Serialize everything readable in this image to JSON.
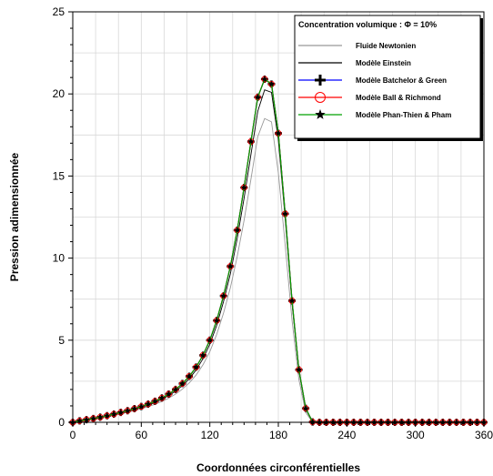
{
  "chart_data": {
    "type": "line",
    "title": "",
    "xlabel": "Coordonnées circonférentielles",
    "ylabel": "Pression adimensionnée",
    "xlim": [
      0,
      360
    ],
    "ylim": [
      0,
      25
    ],
    "xticks": [
      0,
      60,
      120,
      180,
      240,
      300,
      360
    ],
    "yticks": [
      0,
      5,
      10,
      15,
      20,
      25
    ],
    "grid": true,
    "legend": {
      "title": "Concentration volumique : Φ = 10%",
      "placement": "top-right"
    },
    "series": [
      {
        "name": "Fluide Newtonien",
        "color": "#999999",
        "marker": "none",
        "x": [
          0,
          6,
          12,
          18,
          24,
          30,
          36,
          42,
          48,
          54,
          60,
          66,
          72,
          78,
          84,
          90,
          96,
          102,
          108,
          114,
          120,
          126,
          132,
          138,
          144,
          150,
          156,
          162,
          168,
          174,
          180,
          186,
          192,
          198,
          204,
          210,
          216,
          360
        ],
        "y": [
          0,
          0.08,
          0.14,
          0.2,
          0.28,
          0.36,
          0.44,
          0.52,
          0.62,
          0.72,
          0.83,
          0.95,
          1.1,
          1.27,
          1.47,
          1.72,
          2.02,
          2.4,
          2.88,
          3.5,
          4.3,
          5.35,
          6.65,
          8.2,
          10.1,
          12.3,
          14.8,
          17.4,
          18.5,
          18.3,
          15.2,
          10.8,
          6.2,
          2.6,
          0.6,
          0,
          0,
          0
        ]
      },
      {
        "name": "Modèle Einstein",
        "color": "#000000",
        "marker": "none",
        "x": [
          0,
          6,
          12,
          18,
          24,
          30,
          36,
          42,
          48,
          54,
          60,
          66,
          72,
          78,
          84,
          90,
          96,
          102,
          108,
          114,
          120,
          126,
          132,
          138,
          144,
          150,
          156,
          162,
          168,
          174,
          180,
          186,
          192,
          198,
          204,
          210,
          216,
          360
        ],
        "y": [
          0,
          0.09,
          0.15,
          0.22,
          0.3,
          0.39,
          0.48,
          0.57,
          0.67,
          0.79,
          0.91,
          1.05,
          1.21,
          1.4,
          1.63,
          1.9,
          2.24,
          2.65,
          3.19,
          3.87,
          4.75,
          5.9,
          7.35,
          9.05,
          11.2,
          13.65,
          16.3,
          18.95,
          20.25,
          20.1,
          17.2,
          12.4,
          7.2,
          3.1,
          0.8,
          0.02,
          0,
          0
        ]
      },
      {
        "name": "Modèle Batchelor & Green",
        "color": "#0000ff",
        "marker": "plus",
        "x": [
          0,
          6,
          12,
          18,
          24,
          30,
          36,
          42,
          48,
          54,
          60,
          66,
          72,
          78,
          84,
          90,
          96,
          102,
          108,
          114,
          120,
          126,
          132,
          138,
          144,
          150,
          156,
          162,
          168,
          174,
          180,
          186,
          192,
          198,
          204,
          210,
          216,
          222,
          228,
          234,
          240,
          246,
          252,
          258,
          264,
          270,
          276,
          282,
          288,
          294,
          300,
          306,
          312,
          318,
          324,
          330,
          336,
          342,
          348,
          354,
          360
        ],
        "y": [
          0,
          0.09,
          0.16,
          0.23,
          0.31,
          0.4,
          0.5,
          0.6,
          0.71,
          0.83,
          0.96,
          1.11,
          1.28,
          1.48,
          1.72,
          2.0,
          2.36,
          2.8,
          3.36,
          4.08,
          5.0,
          6.2,
          7.7,
          9.5,
          11.7,
          14.3,
          17.1,
          19.8,
          20.9,
          20.6,
          17.6,
          12.7,
          7.4,
          3.2,
          0.85,
          0.02,
          0,
          0,
          0,
          0,
          0,
          0,
          0,
          0,
          0,
          0,
          0,
          0,
          0,
          0,
          0,
          0,
          0,
          0,
          0,
          0,
          0,
          0,
          0,
          0,
          0
        ]
      },
      {
        "name": "Modèle Ball & Richmond",
        "color": "#ff0000",
        "marker": "circle",
        "x": [
          0,
          6,
          12,
          18,
          24,
          30,
          36,
          42,
          48,
          54,
          60,
          66,
          72,
          78,
          84,
          90,
          96,
          102,
          108,
          114,
          120,
          126,
          132,
          138,
          144,
          150,
          156,
          162,
          168,
          174,
          180,
          186,
          192,
          198,
          204,
          210,
          216,
          222,
          228,
          234,
          240,
          246,
          252,
          258,
          264,
          270,
          276,
          282,
          288,
          294,
          300,
          306,
          312,
          318,
          324,
          330,
          336,
          342,
          348,
          354,
          360
        ],
        "y": [
          0,
          0.09,
          0.16,
          0.23,
          0.31,
          0.4,
          0.5,
          0.6,
          0.71,
          0.83,
          0.96,
          1.11,
          1.28,
          1.48,
          1.72,
          2.0,
          2.36,
          2.8,
          3.36,
          4.08,
          5.0,
          6.2,
          7.7,
          9.5,
          11.7,
          14.3,
          17.1,
          19.8,
          20.9,
          20.6,
          17.6,
          12.7,
          7.4,
          3.2,
          0.85,
          0.02,
          0,
          0,
          0,
          0,
          0,
          0,
          0,
          0,
          0,
          0,
          0,
          0,
          0,
          0,
          0,
          0,
          0,
          0,
          0,
          0,
          0,
          0,
          0,
          0,
          0
        ]
      },
      {
        "name": "Modèle Phan-Thien & Pham",
        "color": "#00a000",
        "marker": "star",
        "x": [
          0,
          6,
          12,
          18,
          24,
          30,
          36,
          42,
          48,
          54,
          60,
          66,
          72,
          78,
          84,
          90,
          96,
          102,
          108,
          114,
          120,
          126,
          132,
          138,
          144,
          150,
          156,
          162,
          168,
          174,
          180,
          186,
          192,
          198,
          204,
          210,
          216,
          222,
          228,
          234,
          240,
          246,
          252,
          258,
          264,
          270,
          276,
          282,
          288,
          294,
          300,
          306,
          312,
          318,
          324,
          330,
          336,
          342,
          348,
          354,
          360
        ],
        "y": [
          0,
          0.09,
          0.16,
          0.23,
          0.31,
          0.4,
          0.5,
          0.6,
          0.71,
          0.83,
          0.96,
          1.11,
          1.28,
          1.48,
          1.72,
          2.0,
          2.36,
          2.8,
          3.36,
          4.08,
          5.0,
          6.2,
          7.7,
          9.5,
          11.7,
          14.3,
          17.1,
          19.8,
          20.9,
          20.6,
          17.6,
          12.7,
          7.4,
          3.2,
          0.85,
          0.02,
          0,
          0,
          0,
          0,
          0,
          0,
          0,
          0,
          0,
          0,
          0,
          0,
          0,
          0,
          0,
          0,
          0,
          0,
          0,
          0,
          0,
          0,
          0,
          0,
          0
        ]
      }
    ]
  }
}
